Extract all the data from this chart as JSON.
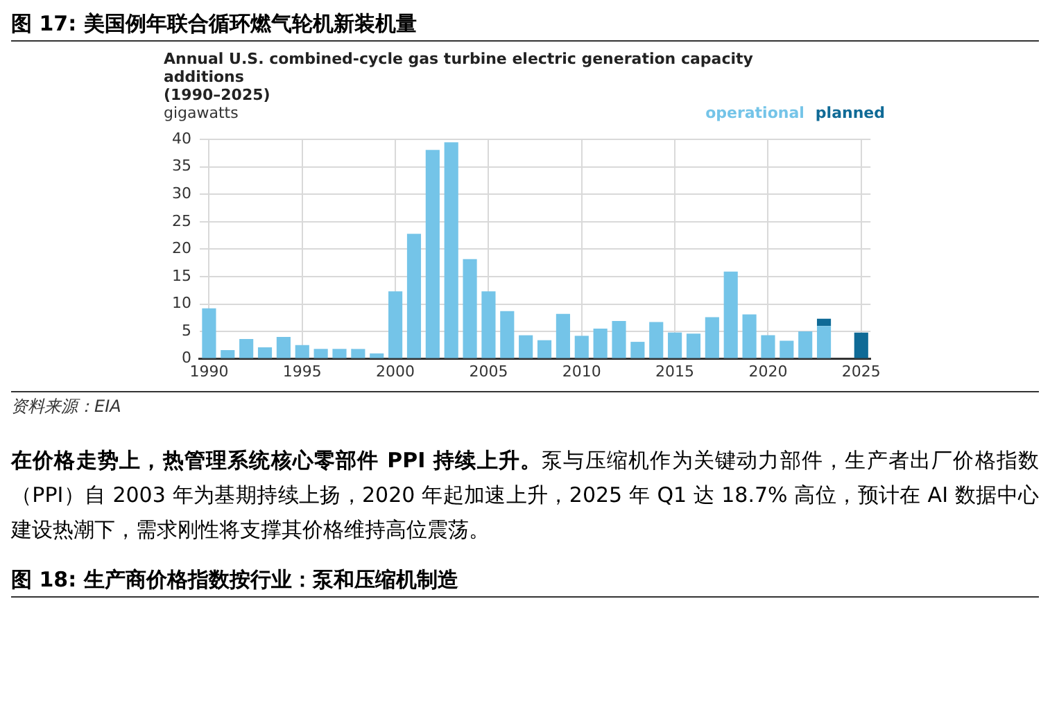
{
  "chart_data": {
    "type": "bar",
    "title": "Annual U.S. combined-cycle gas turbine electric generation capacity additions",
    "subtitle": "(1990–2025)",
    "ylabel": "gigawatts",
    "categories": [
      "1990",
      null,
      null,
      null,
      null,
      "1995",
      null,
      null,
      null,
      null,
      "2000",
      null,
      null,
      null,
      null,
      "2005",
      null,
      null,
      null,
      null,
      "2010",
      null,
      null,
      null,
      null,
      "2015",
      null,
      null,
      null,
      null,
      "2020",
      null,
      null,
      null,
      null,
      "2025"
    ],
    "series": [
      {
        "name": "operational",
        "color": "#74c4e8",
        "values": [
          9.2,
          1.6,
          3.6,
          2.1,
          4.0,
          2.5,
          1.8,
          1.8,
          1.8,
          1.0,
          12.3,
          22.8,
          38.1,
          39.5,
          18.2,
          12.3,
          8.7,
          4.3,
          3.4,
          8.2,
          4.2,
          5.5,
          6.9,
          3.1,
          6.7,
          4.8,
          4.6,
          7.6,
          15.9,
          8.1,
          4.3,
          3.3,
          5.0,
          6.0,
          0,
          null
        ]
      },
      {
        "name": "planned",
        "color": "#0f6a96",
        "values": [
          null,
          null,
          null,
          null,
          null,
          null,
          null,
          null,
          null,
          null,
          null,
          null,
          null,
          null,
          null,
          null,
          null,
          null,
          null,
          null,
          null,
          null,
          null,
          null,
          null,
          null,
          null,
          null,
          null,
          null,
          null,
          null,
          null,
          1.3,
          null,
          4.8
        ]
      }
    ],
    "stacked": true,
    "ylim": [
      0,
      40
    ],
    "yticks": [
      0,
      5,
      10,
      15,
      20,
      25,
      30,
      35,
      40
    ],
    "grid": true,
    "legend": "top right",
    "annotations": [
      "图 17: 美国例年联合循环燃气轮机新装机量",
      "资料来源：EIA",
      "在价格走势上，热管理系统核心零部件 PPI 持续上升。",
      "泵与压缩机作为关键动力部件，生产者出厂价格指数（PPI）自 2003 年为基期持续上扬，2020 年起加速上升，2025 年 Q1 达 18.7% 高位，预计在 AI 数据中心建设热潮下，需求刚性将支撑其价格维持高位震荡。",
      "图 18: 生产商价格指数按行业：泵和压缩机制造"
    ]
  }
}
